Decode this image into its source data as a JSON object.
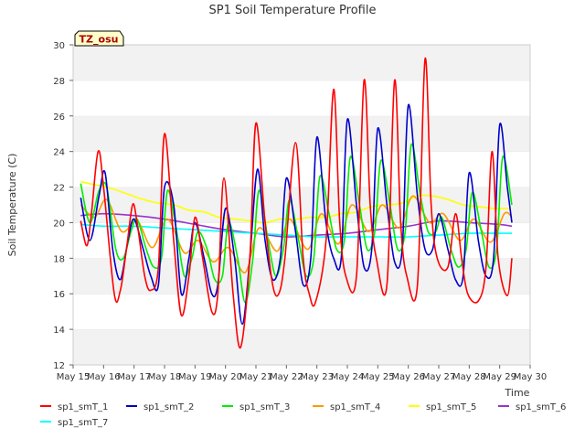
{
  "chart_data": {
    "type": "line",
    "title": "SP1 Soil Temperature Profile",
    "xlabel": "Time",
    "ylabel": "Soil Temperature (C)",
    "xlim": [
      15,
      30
    ],
    "ylim": [
      12,
      30
    ],
    "yticks": [
      12,
      14,
      16,
      18,
      20,
      22,
      24,
      26,
      28,
      30
    ],
    "xticks": [
      {
        "v": 15,
        "label": "May 15"
      },
      {
        "v": 16,
        "label": "May 16"
      },
      {
        "v": 17,
        "label": "May 17"
      },
      {
        "v": 18,
        "label": "May 18"
      },
      {
        "v": 19,
        "label": "May 19"
      },
      {
        "v": 20,
        "label": "May 20"
      },
      {
        "v": 21,
        "label": "May 21"
      },
      {
        "v": 22,
        "label": "May 22"
      },
      {
        "v": 23,
        "label": "May 23"
      },
      {
        "v": 24,
        "label": "May 24"
      },
      {
        "v": 25,
        "label": "May 25"
      },
      {
        "v": 26,
        "label": "May 26"
      },
      {
        "v": 27,
        "label": "May 27"
      },
      {
        "v": 28,
        "label": "May 28"
      },
      {
        "v": 29,
        "label": "May 29"
      },
      {
        "v": 30,
        "label": "May 30"
      }
    ],
    "annotation": "TZ_osu",
    "grid": "horizontal bands",
    "legend_position": "bottom",
    "series": [
      {
        "name": "sp1_smT_1",
        "color": "#ff0000",
        "x": [
          15.25,
          15.45,
          15.6,
          15.82,
          16.0,
          16.35,
          16.55,
          16.75,
          16.95,
          17.1,
          17.35,
          17.55,
          17.8,
          18.0,
          18.3,
          18.55,
          18.8,
          19.0,
          19.25,
          19.55,
          19.75,
          19.95,
          20.25,
          20.5,
          20.8,
          21.0,
          21.3,
          21.55,
          21.75,
          21.95,
          22.3,
          22.55,
          22.75,
          22.95,
          23.3,
          23.55,
          23.75,
          23.95,
          24.3,
          24.55,
          24.75,
          24.95,
          25.3,
          25.55,
          25.75,
          25.95,
          26.3,
          26.55,
          26.75,
          26.95,
          27.3,
          27.55,
          27.75,
          27.95,
          28.3,
          28.55,
          28.75,
          28.95,
          29.25,
          29.4
        ],
        "y": [
          20.1,
          18.7,
          20.5,
          24.0,
          22.0,
          16.0,
          16.2,
          18.5,
          21.0,
          20.0,
          17.0,
          16.2,
          17.5,
          25.0,
          19.0,
          14.8,
          17.0,
          20.3,
          18.0,
          15.0,
          16.0,
          22.5,
          16.0,
          13.0,
          18.0,
          25.6,
          20.0,
          16.5,
          16.0,
          18.0,
          24.5,
          18.0,
          16.0,
          15.5,
          19.0,
          27.5,
          20.0,
          17.0,
          17.0,
          28.0,
          21.0,
          18.0,
          16.5,
          28.0,
          20.0,
          17.0,
          16.5,
          29.2,
          21.0,
          18.0,
          17.5,
          20.5,
          18.0,
          16.0,
          15.6,
          17.5,
          24.0,
          18.0,
          15.9,
          18.0
        ]
      },
      {
        "name": "sp1_smT_2",
        "color": "#0000cc",
        "x": [
          15.25,
          15.55,
          15.85,
          16.05,
          16.3,
          16.55,
          16.8,
          17.0,
          17.3,
          17.55,
          17.8,
          18.0,
          18.3,
          18.55,
          18.8,
          19.0,
          19.3,
          19.55,
          19.75,
          20.0,
          20.3,
          20.55,
          20.8,
          21.05,
          21.3,
          21.55,
          21.8,
          22.0,
          22.3,
          22.55,
          22.8,
          23.0,
          23.3,
          23.55,
          23.8,
          24.0,
          24.3,
          24.55,
          24.8,
          25.0,
          25.3,
          25.55,
          25.8,
          26.0,
          26.3,
          26.55,
          26.8,
          27.0,
          27.3,
          27.55,
          27.8,
          28.0,
          28.3,
          28.55,
          28.8,
          29.0,
          29.25,
          29.4
        ],
        "y": [
          21.4,
          19.0,
          21.5,
          22.8,
          18.5,
          16.8,
          19.0,
          20.2,
          18.5,
          17.0,
          16.5,
          22.0,
          21.0,
          16.0,
          18.0,
          20.0,
          18.0,
          16.0,
          16.5,
          20.8,
          18.0,
          14.3,
          18.0,
          23.0,
          19.0,
          16.8,
          18.0,
          22.5,
          19.5,
          16.5,
          18.0,
          24.8,
          20.0,
          18.0,
          18.0,
          25.8,
          21.0,
          17.5,
          18.5,
          25.3,
          21.0,
          17.8,
          18.5,
          26.6,
          21.5,
          18.5,
          18.5,
          20.5,
          18.5,
          16.8,
          17.0,
          22.8,
          19.0,
          17.0,
          18.0,
          25.5,
          22.0,
          20.0
        ]
      },
      {
        "name": "sp1_smT_3",
        "color": "#00ee00",
        "x": [
          15.25,
          15.55,
          15.85,
          16.1,
          16.4,
          16.65,
          16.9,
          17.1,
          17.4,
          17.65,
          17.9,
          18.1,
          18.4,
          18.65,
          18.9,
          19.1,
          19.4,
          19.65,
          19.9,
          20.1,
          20.4,
          20.65,
          20.9,
          21.1,
          21.4,
          21.65,
          21.9,
          22.1,
          22.4,
          22.65,
          22.9,
          23.1,
          23.4,
          23.65,
          23.9,
          24.1,
          24.4,
          24.65,
          24.9,
          25.1,
          25.4,
          25.65,
          25.9,
          26.1,
          26.4,
          26.65,
          26.9,
          27.1,
          27.4,
          27.65,
          27.9,
          28.1,
          28.4,
          28.65,
          28.9,
          29.1,
          29.4
        ],
        "y": [
          22.2,
          20.0,
          21.8,
          22.0,
          18.5,
          18.0,
          19.5,
          20.2,
          18.5,
          17.5,
          18.0,
          21.8,
          19.5,
          17.0,
          18.0,
          19.5,
          18.5,
          16.8,
          17.0,
          20.0,
          18.0,
          15.5,
          18.0,
          21.8,
          19.0,
          17.0,
          18.5,
          21.3,
          19.0,
          17.0,
          18.0,
          22.6,
          20.5,
          18.5,
          19.0,
          23.7,
          21.0,
          18.5,
          19.5,
          23.5,
          21.0,
          18.5,
          19.5,
          24.4,
          21.5,
          19.5,
          19.5,
          20.3,
          18.5,
          17.5,
          18.5,
          21.7,
          19.5,
          17.5,
          18.5,
          23.7,
          21.0
        ]
      },
      {
        "name": "sp1_smT_4",
        "color": "#ff9900",
        "x": [
          15.25,
          15.7,
          16.1,
          16.6,
          17.1,
          17.6,
          18.1,
          18.65,
          19.1,
          19.6,
          20.1,
          20.65,
          21.1,
          21.7,
          22.1,
          22.7,
          23.15,
          23.7,
          24.15,
          24.7,
          25.15,
          25.7,
          26.15,
          26.7,
          27.15,
          27.7,
          28.15,
          28.7,
          29.15,
          29.4
        ],
        "y": [
          21.0,
          20.3,
          21.3,
          19.5,
          20.1,
          18.6,
          20.2,
          18.3,
          19.0,
          17.8,
          18.6,
          17.2,
          19.7,
          18.4,
          20.2,
          18.5,
          20.5,
          18.8,
          21.0,
          19.5,
          21.0,
          19.7,
          21.5,
          20.0,
          20.5,
          19.0,
          20.2,
          18.9,
          20.5,
          20.3
        ]
      },
      {
        "name": "sp1_smT_5",
        "color": "#ffff00",
        "x": [
          15.25,
          15.8,
          16.3,
          16.8,
          17.3,
          17.8,
          18.3,
          18.8,
          19.3,
          19.8,
          20.3,
          20.8,
          21.3,
          21.8,
          22.3,
          22.8,
          23.3,
          23.8,
          24.3,
          24.8,
          25.3,
          25.8,
          26.3,
          26.8,
          27.3,
          27.8,
          28.3,
          28.8,
          29.3
        ],
        "y": [
          22.3,
          22.1,
          21.9,
          21.6,
          21.3,
          21.1,
          21.0,
          20.7,
          20.6,
          20.3,
          20.2,
          20.1,
          20.0,
          20.2,
          20.2,
          20.3,
          20.3,
          20.5,
          20.6,
          20.9,
          21.0,
          21.1,
          21.5,
          21.5,
          21.3,
          21.0,
          20.9,
          20.8,
          20.8
        ]
      },
      {
        "name": "sp1_smT_6",
        "color": "#9933cc",
        "x": [
          15.25,
          16.0,
          17.0,
          18.0,
          19.0,
          20.0,
          21.0,
          22.0,
          23.0,
          24.0,
          25.0,
          26.0,
          27.0,
          28.0,
          29.0,
          29.4
        ],
        "y": [
          20.4,
          20.5,
          20.4,
          20.2,
          19.9,
          19.6,
          19.4,
          19.2,
          19.3,
          19.4,
          19.6,
          19.8,
          20.1,
          20.0,
          19.9,
          19.8
        ]
      },
      {
        "name": "sp1_smT_7",
        "color": "#00ffff",
        "x": [
          15.25,
          16.0,
          17.0,
          18.0,
          19.0,
          20.0,
          21.0,
          22.0,
          23.0,
          24.0,
          25.0,
          26.0,
          27.0,
          28.0,
          29.0,
          29.4
        ],
        "y": [
          19.9,
          19.8,
          19.8,
          19.7,
          19.6,
          19.5,
          19.4,
          19.3,
          19.2,
          19.2,
          19.2,
          19.2,
          19.3,
          19.4,
          19.4,
          19.4
        ]
      }
    ]
  }
}
